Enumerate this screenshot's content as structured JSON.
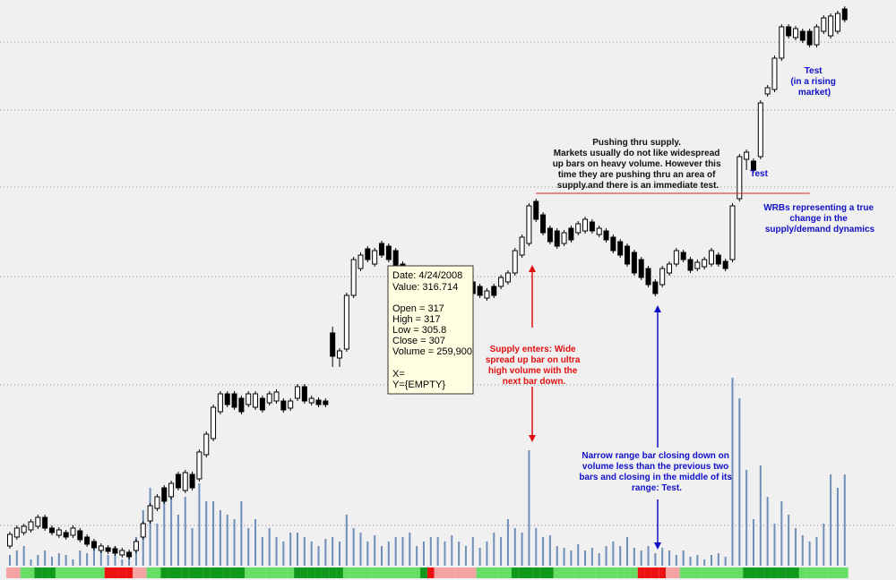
{
  "chart_data": {
    "type": "candlestick",
    "ylim": [
      220,
      480
    ],
    "yticks": [
      461.2,
      430.8,
      396.4,
      356.4,
      308,
      245.2
    ],
    "grid": true,
    "vlim": [
      0,
      1264000
    ],
    "up_color": "#ffffff",
    "down_color": "#000000",
    "volume_color": "#6f8fb8",
    "open": [
      236,
      240,
      242,
      243.2,
      244.8,
      248.8,
      244,
      240.8,
      242,
      240.8,
      242.8,
      240,
      238,
      234,
      235.2,
      234.8,
      232,
      233.2,
      234,
      240,
      247.2,
      252.8,
      262,
      258,
      268,
      260.8,
      268,
      266,
      276.8,
      284,
      296,
      304,
      304,
      302,
      299.2,
      298,
      302,
      300,
      300.8,
      300.8,
      297.6,
      302,
      307.2,
      300,
      301.2,
      300.8,
      331.2,
      320,
      324,
      348,
      360,
      368.8,
      362,
      371.2,
      370,
      368,
      362,
      354,
      358,
      348,
      356,
      348,
      355.2,
      348,
      354,
      347.2,
      354,
      352,
      346.8,
      352,
      352,
      354,
      358,
      366,
      371.2,
      390,
      384,
      378,
      376.8,
      371.2,
      378,
      376,
      376.8,
      380.8,
      375.2,
      376.8,
      374,
      372,
      370,
      367.2,
      364,
      360,
      354,
      352.8,
      358,
      362,
      367.2,
      364,
      360,
      360.8,
      362,
      366,
      363.2,
      364,
      391.2,
      408.8,
      408,
      410,
      438,
      440,
      454,
      468,
      463.2,
      466,
      466,
      460,
      466,
      464,
      466,
      476
    ],
    "high": [
      242.4,
      245.2,
      246,
      248,
      250,
      250,
      245.2,
      244.4,
      243.2,
      245.2,
      244,
      241.2,
      239.2,
      237.2,
      236.4,
      236,
      235.2,
      234.4,
      239.2,
      247.2,
      255.2,
      259.2,
      263.2,
      265.2,
      269.2,
      270,
      269.2,
      279.2,
      287.2,
      299.2,
      305.2,
      305.2,
      305.2,
      303.2,
      305.2,
      305.2,
      303.2,
      305.2,
      306,
      302,
      302,
      308.4,
      308.4,
      303.2,
      302.4,
      302,
      334,
      324.4,
      349.2,
      365.2,
      367.2,
      370,
      369.2,
      372.4,
      371.2,
      369.2,
      363.2,
      361.2,
      359.2,
      355.2,
      357.2,
      355.2,
      356.4,
      354,
      355.2,
      354,
      355.2,
      353.2,
      351.2,
      353.2,
      357.2,
      359.2,
      369.2,
      375.2,
      389.2,
      391.2,
      385.2,
      379.2,
      378,
      377.2,
      379.2,
      381.2,
      383.2,
      382,
      379.2,
      378,
      375.2,
      373.2,
      371.2,
      368.4,
      365.2,
      361.2,
      355.2,
      361.2,
      363.2,
      369.2,
      368.4,
      365.2,
      364,
      365.2,
      369.2,
      367.2,
      364.4,
      389.2,
      411.2,
      413.2,
      409.2,
      435.2,
      442,
      455.2,
      469.2,
      469.2,
      468.4,
      467.2,
      467.2,
      469.2,
      473.2,
      474,
      475.2,
      477.2
    ],
    "low": [
      234.8,
      238.8,
      240.8,
      242,
      243.6,
      242.8,
      240.8,
      239.6,
      238.8,
      239.6,
      237.6,
      235.6,
      234,
      232.8,
      232.4,
      231.6,
      230.8,
      230,
      232.8,
      238.8,
      246,
      251.6,
      254.8,
      256.8,
      260.8,
      259.6,
      260.8,
      264.8,
      275.6,
      282.8,
      294.8,
      298,
      296.8,
      294.8,
      298,
      296.8,
      295.6,
      298.8,
      299.6,
      295.6,
      296.4,
      300.8,
      299.6,
      298.8,
      298,
      298,
      316,
      316,
      322.8,
      346.8,
      358.8,
      362.8,
      360.8,
      364.8,
      362.8,
      358.8,
      354.8,
      352.8,
      350.8,
      346.8,
      348.8,
      346.8,
      348.8,
      346.8,
      347.6,
      346,
      347.6,
      346.8,
      345.6,
      346.8,
      350.8,
      352.8,
      356.8,
      364.8,
      370,
      380.8,
      374.8,
      370.8,
      368.8,
      370,
      371.6,
      374.8,
      375.6,
      375.6,
      374,
      371.6,
      366.8,
      364.8,
      360.8,
      356.8,
      354.8,
      351.6,
      347.6,
      351.6,
      356.8,
      360.8,
      362.8,
      358,
      358.8,
      359.6,
      360.8,
      360.8,
      358.8,
      362.8,
      390,
      404,
      402.8,
      408.8,
      436.8,
      438.8,
      452.8,
      462.8,
      462,
      460.8,
      458.8,
      458.8,
      464.8,
      462.8,
      464.8,
      470
    ],
    "close": [
      241.2,
      244,
      244.8,
      246.8,
      248.8,
      244,
      242,
      243.2,
      240,
      244,
      238.8,
      236.8,
      235.2,
      236,
      233.6,
      232.8,
      234,
      231.2,
      238,
      246,
      254,
      258,
      256,
      264,
      262,
      268.8,
      262,
      278,
      286,
      298,
      304,
      299.2,
      298,
      296,
      304,
      304,
      296.8,
      304,
      304.8,
      296.8,
      300.8,
      307.2,
      300.8,
      302,
      299.2,
      299.2,
      320.8,
      323.2,
      348,
      364,
      366,
      364,
      368,
      366,
      364,
      360,
      356,
      360,
      352,
      354,
      350,
      354,
      350,
      352.8,
      348.8,
      352.8,
      348.8,
      348,
      350,
      348,
      356,
      358,
      368,
      374,
      388,
      382,
      376,
      372,
      370,
      376,
      372.8,
      380,
      382,
      376.8,
      378,
      372.8,
      368,
      366,
      362,
      358,
      356,
      352.8,
      348.8,
      360,
      362,
      368,
      364,
      359.2,
      362.8,
      364,
      368,
      362,
      360,
      388,
      410,
      412,
      404,
      434,
      440.8,
      454,
      468,
      464,
      467.2,
      462,
      460,
      468,
      472,
      472.8,
      474,
      471.2
    ],
    "volume": [
      24000,
      34000,
      44000,
      14000,
      24000,
      34000,
      20000,
      28000,
      24000,
      14000,
      34000,
      28000,
      40000,
      34000,
      24000,
      44000,
      14000,
      28000,
      64000,
      124000,
      174000,
      94000,
      144000,
      168000,
      114000,
      154000,
      84000,
      184000,
      144000,
      144000,
      124000,
      114000,
      104000,
      144000,
      84000,
      104000,
      64000,
      84000,
      64000,
      54000,
      74000,
      74000,
      64000,
      54000,
      44000,
      60000,
      64000,
      54000,
      114000,
      84000,
      74000,
      54000,
      68000,
      44000,
      54000,
      64000,
      64000,
      74000,
      44000,
      54000,
      64000,
      64000,
      54000,
      68000,
      54000,
      44000,
      64000,
      40000,
      54000,
      74000,
      64000,
      104000,
      84000,
      74000,
      258000,
      84000,
      64000,
      68000,
      44000,
      40000,
      34000,
      48000,
      34000,
      40000,
      28000,
      44000,
      54000,
      44000,
      64000,
      40000,
      34000,
      44000,
      28000,
      40000,
      34000,
      24000,
      34000,
      20000,
      24000,
      14000,
      24000,
      28000,
      20000,
      420000,
      374000,
      214000,
      104000,
      224000,
      154000,
      94000,
      144000,
      114000,
      84000,
      68000,
      54000,
      64000,
      94000,
      204000,
      174000,
      204000
    ],
    "strip": "PPLLDDDLLLLLLLRRRRPPLLDDDDDDDDDDDDLLLLLLLDDDDDDDLLLLLLLLLLLDRPPPPPPLLLLLDDDDDDLLLLLLLLLLLLRRRRPPLLLLLLLLLDDDDDDDDLLLLLLL",
    "strip_palette": {
      "P": "#f4a3a3",
      "L": "#66dd66",
      "D": "#0f9a1e",
      "R": "#ee1111"
    },
    "level_line": {
      "value": 393.6,
      "from_bar": 75,
      "to_bar": 114,
      "color": "#e02020"
    },
    "annotations": [
      {
        "lines": [
          "Test",
          "(in a rising",
          "market)"
        ]
      },
      {
        "lines": [
          "Test"
        ]
      },
      {
        "lines": [
          "WRBs representing a true",
          "change in the",
          "supply/demand dynamics"
        ]
      },
      {
        "lines": [
          "Pushing thru supply.",
          "Markets usually do not like widespread",
          "up bars on heavy volume. However this",
          "time they are pushing thru an area of",
          "supply.and there is an immediate test."
        ]
      },
      {
        "lines": [
          "Supply enters: Wide",
          "spread up bar on ultra",
          "high volume with the",
          "next bar down."
        ]
      },
      {
        "lines": [
          "Narrow range bar closing down on",
          "volume less than the previous two",
          "bars and closing in the middle of its",
          "range: Test."
        ]
      }
    ],
    "tooltip": {
      "head": [
        "Date: 4/24/2008",
        "Value: 316.714"
      ],
      "ohlc": [
        "Open = 317",
        "High = 317",
        "Low = 305.8",
        "Close = 307",
        "Volume = 259,900"
      ],
      "xy": [
        "X=",
        "Y={EMPTY}"
      ]
    }
  }
}
